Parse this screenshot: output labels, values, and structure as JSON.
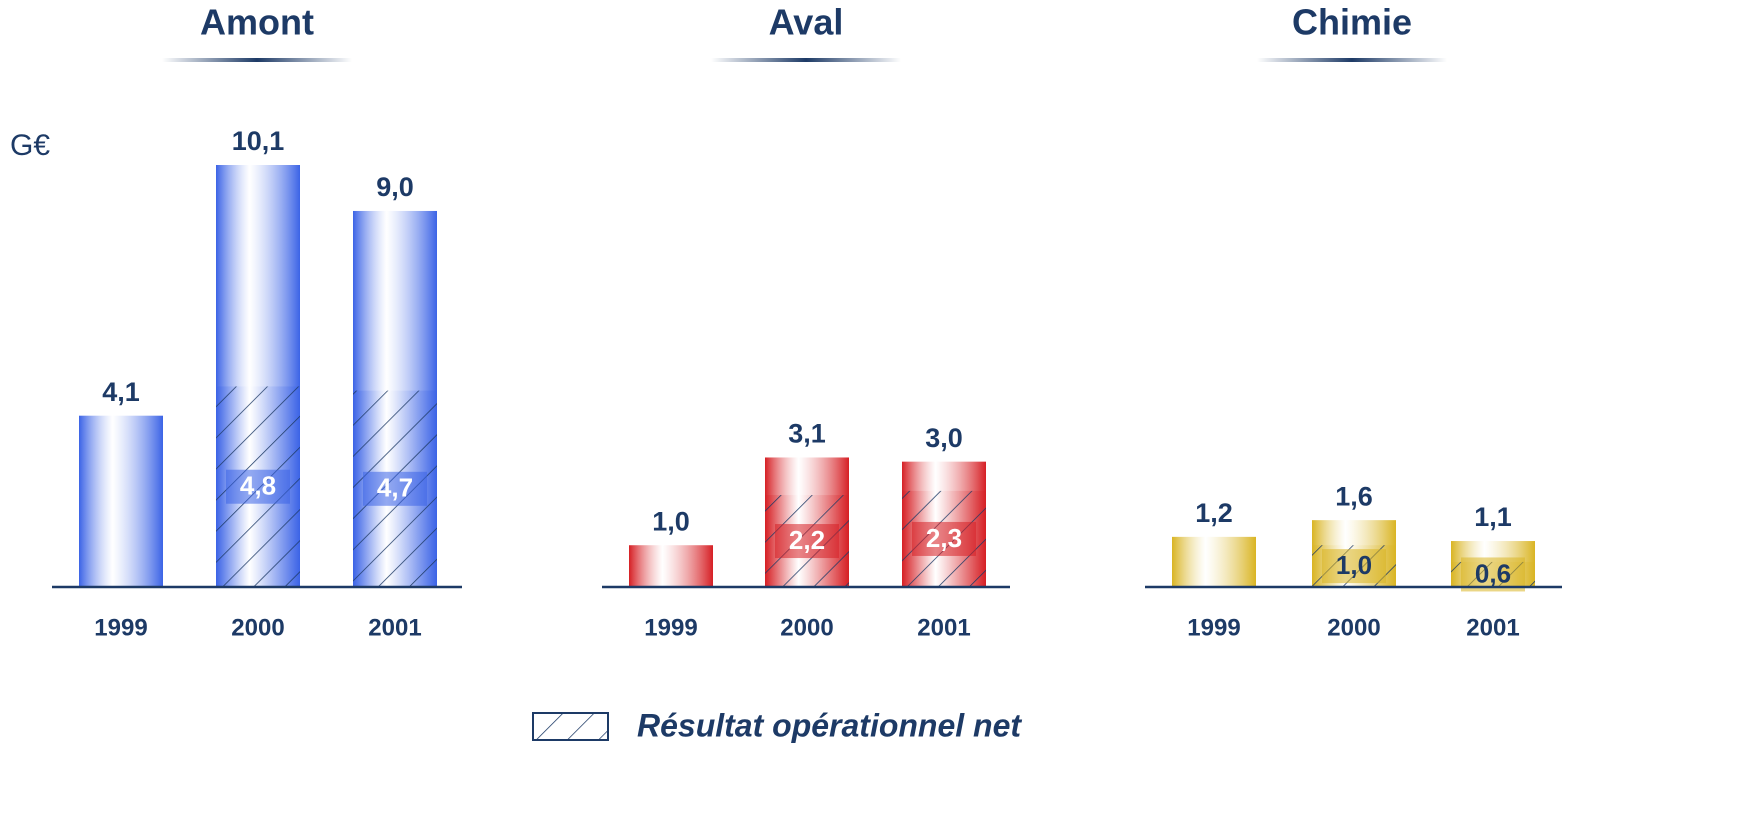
{
  "unit": "G€",
  "legend": "Résultat opérationnel net",
  "chart_data": [
    {
      "type": "bar",
      "title": "Amont",
      "categories": [
        "1999",
        "2000",
        "2001"
      ],
      "color": "#3b63e6",
      "inner_label_color": "#ffffff",
      "series": [
        {
          "values": [
            4.1,
            10.1,
            9.0
          ],
          "value_labels": [
            "4,1",
            "10,1",
            "9,0"
          ]
        },
        {
          "name": "Résultat opérationnel net",
          "hatched": true,
          "values": [
            null,
            4.8,
            4.7
          ],
          "value_labels": [
            null,
            "4,8",
            "4,7"
          ]
        }
      ]
    },
    {
      "type": "bar",
      "title": "Aval",
      "categories": [
        "1999",
        "2000",
        "2001"
      ],
      "color": "#d61f24",
      "inner_label_color": "#ffffff",
      "series": [
        {
          "values": [
            1.0,
            3.1,
            3.0
          ],
          "value_labels": [
            "1,0",
            "3,1",
            "3,0"
          ]
        },
        {
          "name": "Résultat opérationnel net",
          "hatched": true,
          "values": [
            null,
            2.2,
            2.3
          ],
          "value_labels": [
            null,
            "2,2",
            "2,3"
          ]
        }
      ]
    },
    {
      "type": "bar",
      "title": "Chimie",
      "categories": [
        "1999",
        "2000",
        "2001"
      ],
      "color": "#d9b422",
      "inner_label_color": "#1d3a66",
      "series": [
        {
          "values": [
            1.2,
            1.6,
            1.1
          ],
          "value_labels": [
            "1,2",
            "1,6",
            "1,1"
          ]
        },
        {
          "name": "Résultat opérationnel net",
          "hatched": true,
          "values": [
            null,
            1.0,
            0.6
          ],
          "value_labels": [
            null,
            "1,0",
            "0,6"
          ]
        }
      ]
    }
  ]
}
